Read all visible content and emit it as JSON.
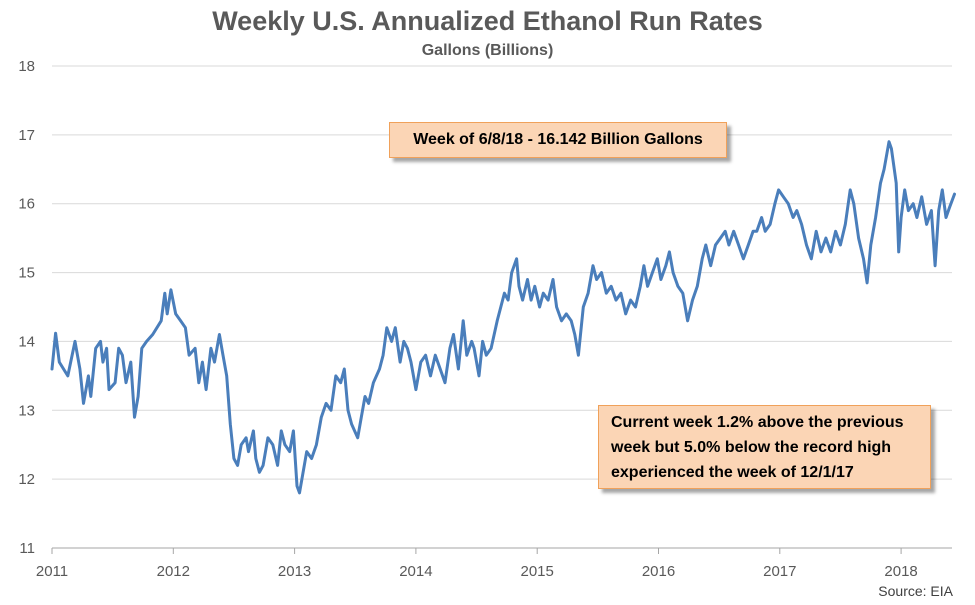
{
  "title": "Weekly U.S. Annualized Ethanol Run Rates",
  "subtitle": "Gallons (Billions)",
  "source": "Source: EIA",
  "annotations": {
    "latest": "Week of 6/8/18 - 16.142 Billion Gallons",
    "comparison": "Current week 1.2% above the previous week but 5.0% below the record high experienced the week of 12/1/17"
  },
  "colors": {
    "series": "#4a7ebb",
    "grid": "#d9d9d9",
    "callout_fill": "#fbd5b5",
    "callout_border": "#f0a15a"
  },
  "chart_data": {
    "type": "line",
    "title": "Weekly U.S. Annualized Ethanol Run Rates",
    "subtitle": "Gallons (Billions)",
    "xlim": [
      2011,
      2018.44
    ],
    "ylim": [
      11,
      18
    ],
    "yticks": [
      11,
      12,
      13,
      14,
      15,
      16,
      17,
      18
    ],
    "xticks": [
      "2011",
      "2012",
      "2013",
      "2014",
      "2015",
      "2016",
      "2017",
      "2018"
    ],
    "grid": "horizontal",
    "series": [
      {
        "values": [
          [
            2011.0,
            13.6
          ],
          [
            2011.03,
            14.12
          ],
          [
            2011.06,
            13.7
          ],
          [
            2011.13,
            13.5
          ],
          [
            2011.19,
            14.0
          ],
          [
            2011.23,
            13.6
          ],
          [
            2011.26,
            13.1
          ],
          [
            2011.3,
            13.5
          ],
          [
            2011.32,
            13.2
          ],
          [
            2011.36,
            13.9
          ],
          [
            2011.4,
            14.0
          ],
          [
            2011.42,
            13.7
          ],
          [
            2011.45,
            13.9
          ],
          [
            2011.47,
            13.3
          ],
          [
            2011.52,
            13.4
          ],
          [
            2011.55,
            13.9
          ],
          [
            2011.58,
            13.8
          ],
          [
            2011.61,
            13.4
          ],
          [
            2011.65,
            13.7
          ],
          [
            2011.68,
            12.9
          ],
          [
            2011.71,
            13.2
          ],
          [
            2011.74,
            13.9
          ],
          [
            2011.78,
            14.0
          ],
          [
            2011.83,
            14.1
          ],
          [
            2011.9,
            14.3
          ],
          [
            2011.93,
            14.7
          ],
          [
            2011.95,
            14.4
          ],
          [
            2011.98,
            14.75
          ],
          [
            2012.02,
            14.4
          ],
          [
            2012.06,
            14.3
          ],
          [
            2012.1,
            14.2
          ],
          [
            2012.13,
            13.8
          ],
          [
            2012.18,
            13.9
          ],
          [
            2012.21,
            13.4
          ],
          [
            2012.24,
            13.7
          ],
          [
            2012.27,
            13.3
          ],
          [
            2012.31,
            13.9
          ],
          [
            2012.34,
            13.7
          ],
          [
            2012.38,
            14.1
          ],
          [
            2012.41,
            13.8
          ],
          [
            2012.44,
            13.5
          ],
          [
            2012.47,
            12.8
          ],
          [
            2012.5,
            12.3
          ],
          [
            2012.53,
            12.2
          ],
          [
            2012.56,
            12.5
          ],
          [
            2012.6,
            12.6
          ],
          [
            2012.62,
            12.4
          ],
          [
            2012.66,
            12.7
          ],
          [
            2012.68,
            12.3
          ],
          [
            2012.71,
            12.1
          ],
          [
            2012.74,
            12.2
          ],
          [
            2012.78,
            12.6
          ],
          [
            2012.82,
            12.5
          ],
          [
            2012.86,
            12.2
          ],
          [
            2012.89,
            12.7
          ],
          [
            2012.92,
            12.5
          ],
          [
            2012.96,
            12.4
          ],
          [
            2012.99,
            12.7
          ],
          [
            2013.02,
            11.9
          ],
          [
            2013.04,
            11.8
          ],
          [
            2013.07,
            12.1
          ],
          [
            2013.1,
            12.4
          ],
          [
            2013.14,
            12.3
          ],
          [
            2013.18,
            12.5
          ],
          [
            2013.22,
            12.9
          ],
          [
            2013.26,
            13.1
          ],
          [
            2013.3,
            13.0
          ],
          [
            2013.34,
            13.5
          ],
          [
            2013.38,
            13.4
          ],
          [
            2013.41,
            13.6
          ],
          [
            2013.44,
            13.0
          ],
          [
            2013.47,
            12.8
          ],
          [
            2013.52,
            12.6
          ],
          [
            2013.55,
            12.9
          ],
          [
            2013.58,
            13.2
          ],
          [
            2013.61,
            13.1
          ],
          [
            2013.65,
            13.4
          ],
          [
            2013.7,
            13.6
          ],
          [
            2013.73,
            13.8
          ],
          [
            2013.76,
            14.2
          ],
          [
            2013.8,
            14.0
          ],
          [
            2013.83,
            14.2
          ],
          [
            2013.87,
            13.7
          ],
          [
            2013.9,
            14.0
          ],
          [
            2013.93,
            13.9
          ],
          [
            2013.96,
            13.7
          ],
          [
            2014.0,
            13.3
          ],
          [
            2014.04,
            13.7
          ],
          [
            2014.08,
            13.8
          ],
          [
            2014.12,
            13.5
          ],
          [
            2014.16,
            13.8
          ],
          [
            2014.2,
            13.6
          ],
          [
            2014.24,
            13.4
          ],
          [
            2014.28,
            13.9
          ],
          [
            2014.31,
            14.1
          ],
          [
            2014.35,
            13.6
          ],
          [
            2014.39,
            14.3
          ],
          [
            2014.42,
            13.8
          ],
          [
            2014.46,
            14.0
          ],
          [
            2014.48,
            13.9
          ],
          [
            2014.52,
            13.5
          ],
          [
            2014.55,
            14.0
          ],
          [
            2014.58,
            13.8
          ],
          [
            2014.62,
            13.9
          ],
          [
            2014.67,
            14.3
          ],
          [
            2014.7,
            14.5
          ],
          [
            2014.73,
            14.7
          ],
          [
            2014.76,
            14.6
          ],
          [
            2014.79,
            15.0
          ],
          [
            2014.83,
            15.2
          ],
          [
            2014.85,
            14.8
          ],
          [
            2014.88,
            14.6
          ],
          [
            2014.92,
            14.9
          ],
          [
            2014.95,
            14.6
          ],
          [
            2014.98,
            14.8
          ],
          [
            2015.02,
            14.5
          ],
          [
            2015.05,
            14.7
          ],
          [
            2015.09,
            14.6
          ],
          [
            2015.13,
            14.9
          ],
          [
            2015.16,
            14.5
          ],
          [
            2015.2,
            14.3
          ],
          [
            2015.24,
            14.4
          ],
          [
            2015.28,
            14.3
          ],
          [
            2015.31,
            14.1
          ],
          [
            2015.34,
            13.8
          ],
          [
            2015.38,
            14.5
          ],
          [
            2015.42,
            14.7
          ],
          [
            2015.46,
            15.1
          ],
          [
            2015.49,
            14.9
          ],
          [
            2015.53,
            15.0
          ],
          [
            2015.57,
            14.7
          ],
          [
            2015.61,
            14.8
          ],
          [
            2015.65,
            14.6
          ],
          [
            2015.69,
            14.7
          ],
          [
            2015.73,
            14.4
          ],
          [
            2015.77,
            14.6
          ],
          [
            2015.81,
            14.5
          ],
          [
            2015.85,
            14.8
          ],
          [
            2015.88,
            15.1
          ],
          [
            2015.91,
            14.8
          ],
          [
            2015.95,
            15.0
          ],
          [
            2015.99,
            15.2
          ],
          [
            2016.02,
            14.9
          ],
          [
            2016.06,
            15.1
          ],
          [
            2016.09,
            15.3
          ],
          [
            2016.12,
            15.0
          ],
          [
            2016.16,
            14.8
          ],
          [
            2016.2,
            14.7
          ],
          [
            2016.24,
            14.3
          ],
          [
            2016.28,
            14.6
          ],
          [
            2016.32,
            14.8
          ],
          [
            2016.36,
            15.2
          ],
          [
            2016.39,
            15.4
          ],
          [
            2016.43,
            15.1
          ],
          [
            2016.47,
            15.4
          ],
          [
            2016.51,
            15.5
          ],
          [
            2016.55,
            15.6
          ],
          [
            2016.58,
            15.4
          ],
          [
            2016.62,
            15.6
          ],
          [
            2016.66,
            15.4
          ],
          [
            2016.7,
            15.2
          ],
          [
            2016.74,
            15.4
          ],
          [
            2016.78,
            15.6
          ],
          [
            2016.81,
            15.6
          ],
          [
            2016.85,
            15.8
          ],
          [
            2016.88,
            15.6
          ],
          [
            2016.92,
            15.7
          ],
          [
            2016.96,
            16.0
          ],
          [
            2016.99,
            16.2
          ],
          [
            2017.03,
            16.1
          ],
          [
            2017.07,
            16.0
          ],
          [
            2017.11,
            15.8
          ],
          [
            2017.14,
            15.9
          ],
          [
            2017.18,
            15.7
          ],
          [
            2017.22,
            15.4
          ],
          [
            2017.26,
            15.2
          ],
          [
            2017.3,
            15.6
          ],
          [
            2017.34,
            15.3
          ],
          [
            2017.38,
            15.5
          ],
          [
            2017.42,
            15.3
          ],
          [
            2017.46,
            15.6
          ],
          [
            2017.5,
            15.4
          ],
          [
            2017.54,
            15.7
          ],
          [
            2017.58,
            16.2
          ],
          [
            2017.61,
            16.0
          ],
          [
            2017.65,
            15.5
          ],
          [
            2017.69,
            15.2
          ],
          [
            2017.72,
            14.85
          ],
          [
            2017.75,
            15.4
          ],
          [
            2017.79,
            15.8
          ],
          [
            2017.83,
            16.3
          ],
          [
            2017.86,
            16.5
          ],
          [
            2017.9,
            16.9
          ],
          [
            2017.92,
            16.8
          ],
          [
            2017.96,
            16.3
          ],
          [
            2017.98,
            15.3
          ],
          [
            2018.0,
            15.8
          ],
          [
            2018.03,
            16.2
          ],
          [
            2018.06,
            15.9
          ],
          [
            2018.1,
            16.0
          ],
          [
            2018.13,
            15.8
          ],
          [
            2018.17,
            16.1
          ],
          [
            2018.21,
            15.7
          ],
          [
            2018.25,
            15.9
          ],
          [
            2018.28,
            15.1
          ],
          [
            2018.31,
            15.9
          ],
          [
            2018.34,
            16.2
          ],
          [
            2018.37,
            15.8
          ],
          [
            2018.4,
            15.95
          ],
          [
            2018.44,
            16.14
          ]
        ]
      }
    ]
  }
}
